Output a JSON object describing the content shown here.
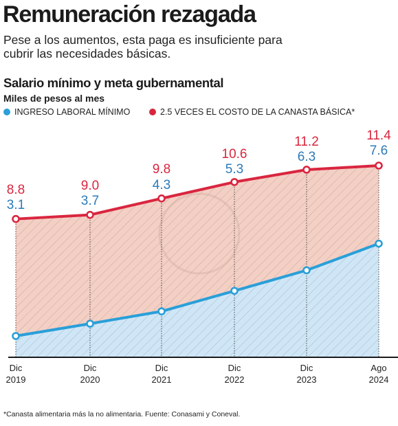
{
  "header": {
    "title": "Remuneración rezagada",
    "subtitle": "Pese a los aumentos, esta paga es insuficiente para cubrir las necesidades básicas."
  },
  "chart_data": {
    "type": "area",
    "title": "Salario mínimo y meta gubernamental",
    "units": "Miles de pesos al mes",
    "categories": [
      [
        "Dic",
        "2019"
      ],
      [
        "Dic",
        "2020"
      ],
      [
        "Dic",
        "2021"
      ],
      [
        "Dic",
        "2022"
      ],
      [
        "Dic",
        "2023"
      ],
      [
        "Ago",
        "2024"
      ]
    ],
    "series": [
      {
        "name": "INGRESO LABORAL MÍNIMO",
        "values": [
          3.1,
          3.7,
          4.3,
          5.3,
          6.3,
          7.6
        ],
        "value_labels": [
          "3.1",
          "3.7",
          "4.3",
          "5.3",
          "6.3",
          "7.6"
        ],
        "color": "#2a9fd8",
        "fill": "#cfe6f7"
      },
      {
        "name": "2.5 VECES EL COSTO DE LA CANASTA BÁSICA*",
        "values": [
          8.8,
          9.0,
          9.8,
          10.6,
          11.2,
          11.4
        ],
        "value_labels": [
          "8.8",
          "9.0",
          "9.8",
          "10.6",
          "11.2",
          "11.4"
        ],
        "color": "#d9263f",
        "fill": "#f4cfc4"
      }
    ],
    "grid": false,
    "legend_position": "top-left"
  },
  "footnote": "*Canasta alimentaria más la no alimentaria. Fuente: Conasami y  Coneval.",
  "colors": {
    "blue": "#2a9fd8",
    "red": "#d9263f",
    "blue_label": "#2b7ab8",
    "red_label": "#d9263f"
  }
}
